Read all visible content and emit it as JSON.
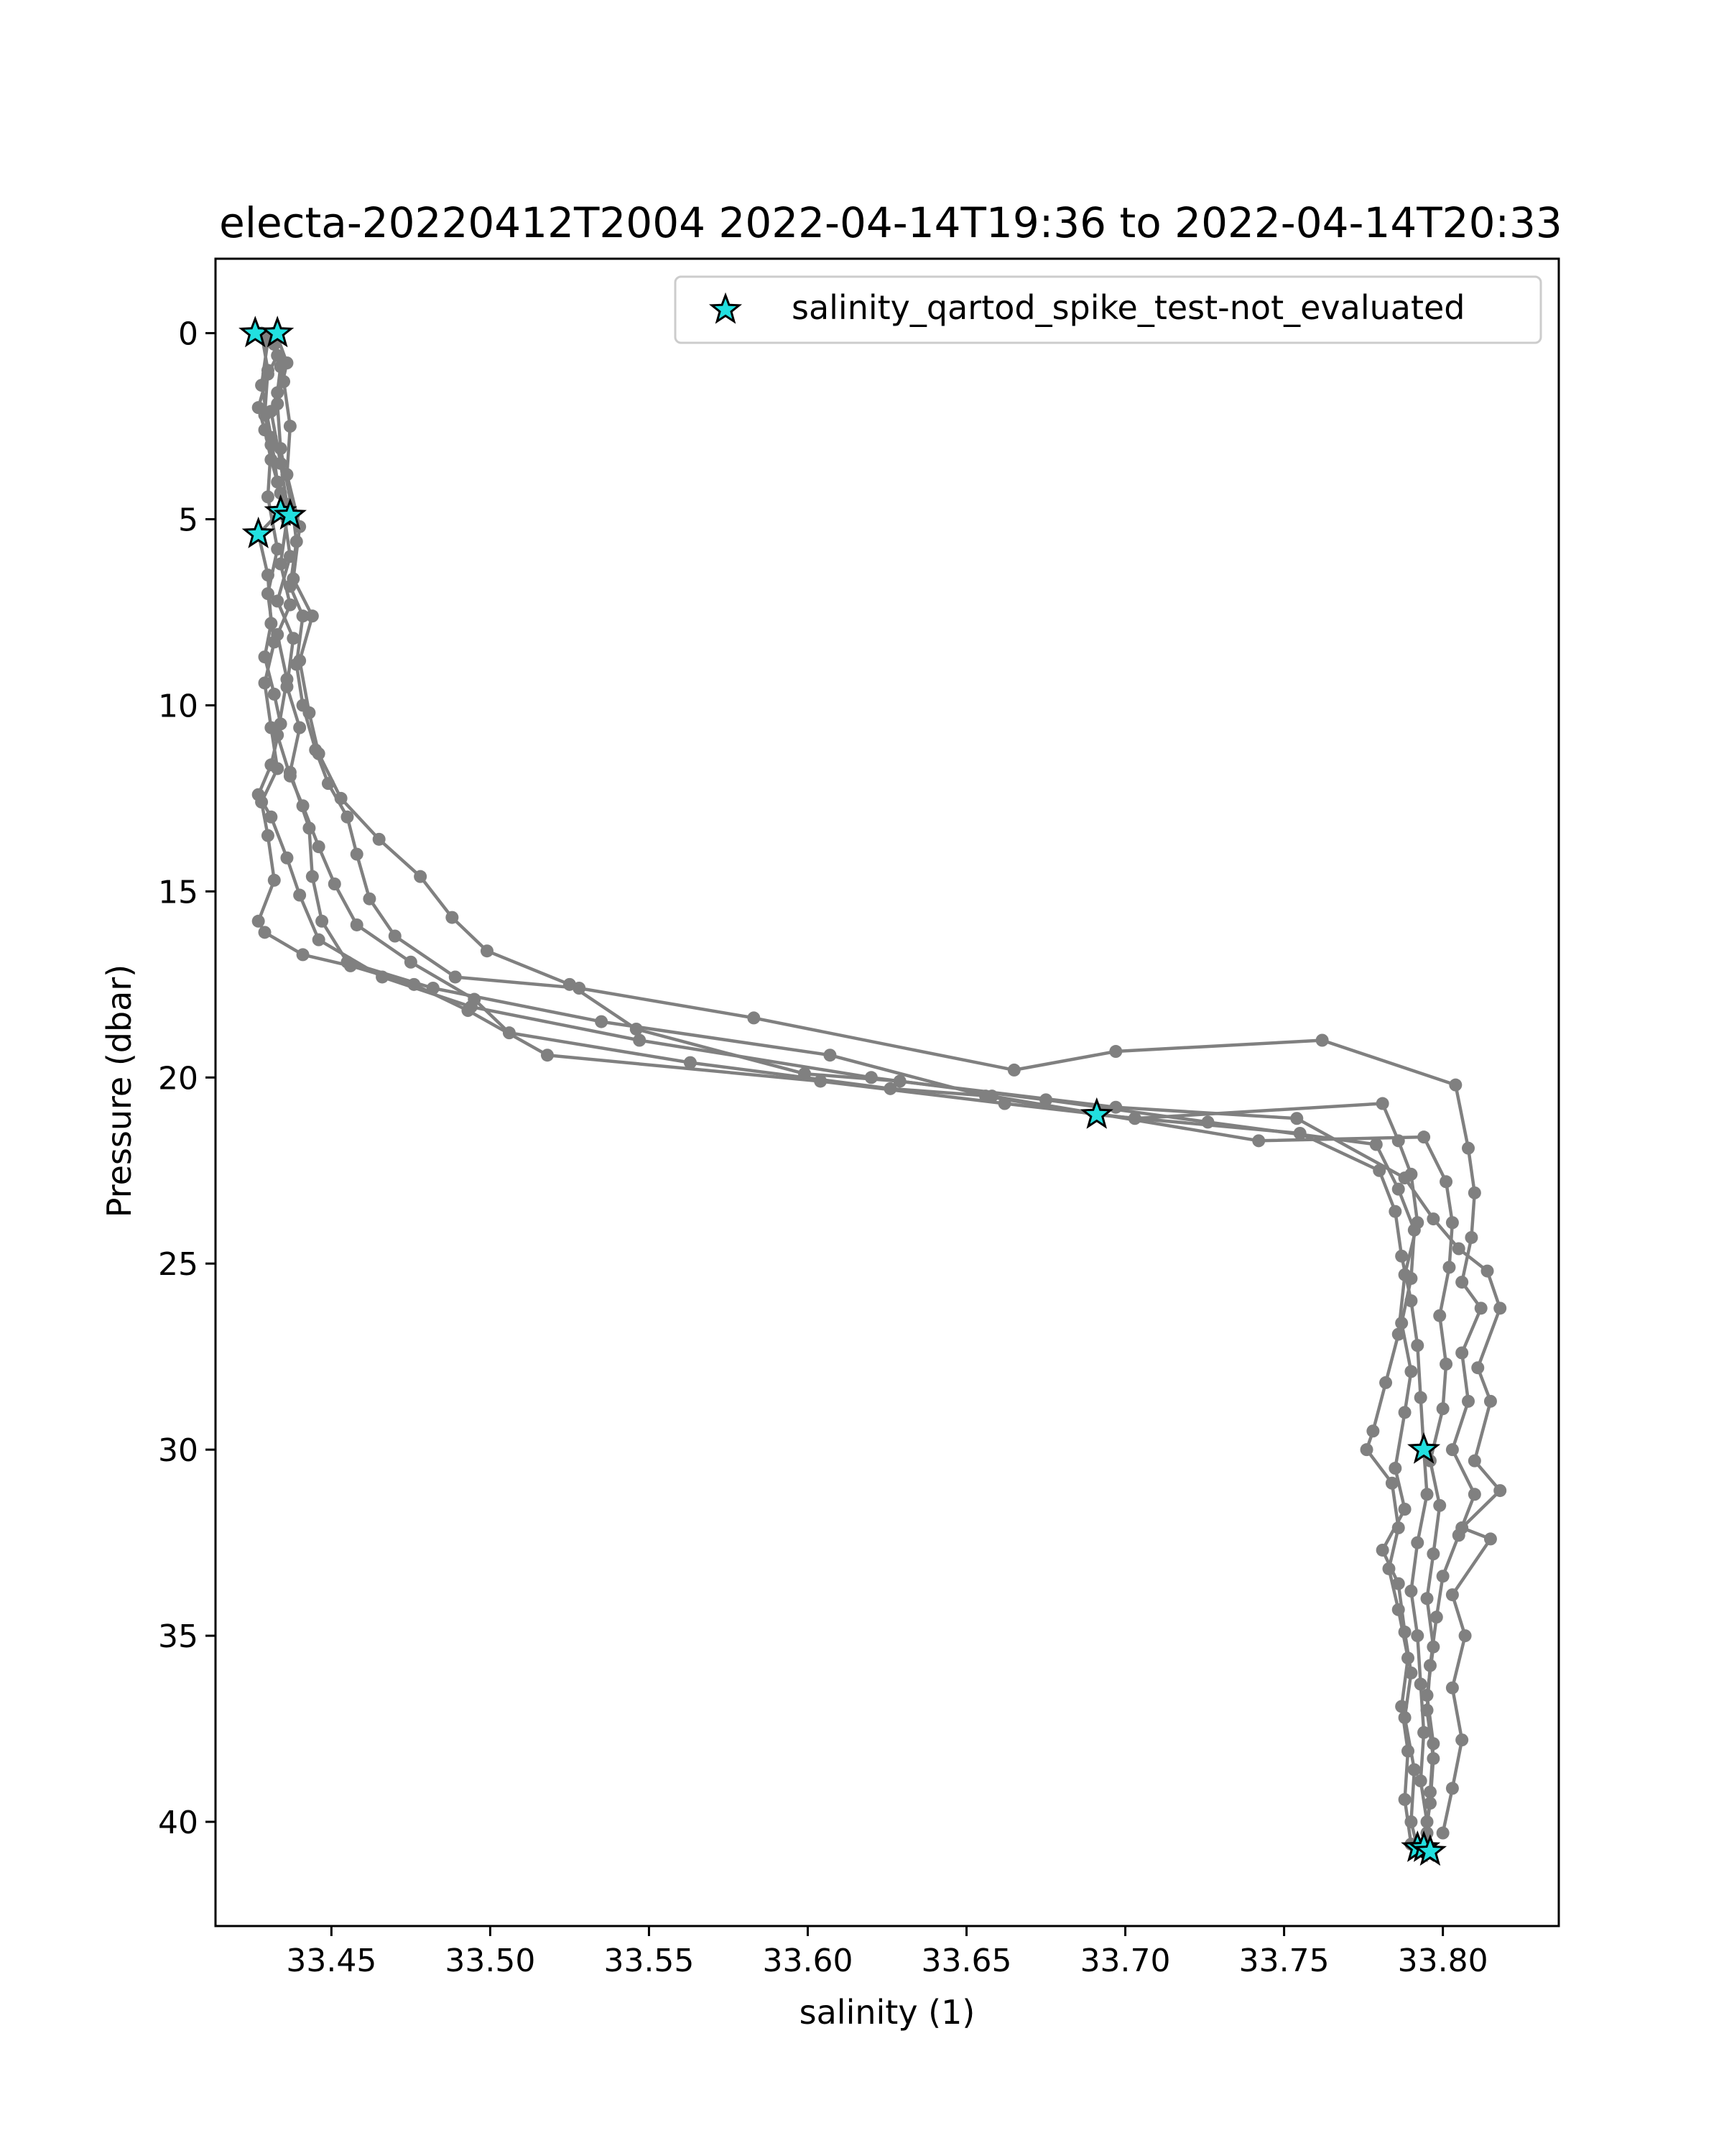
{
  "chart_data": {
    "type": "scatter",
    "title": "electa-20220412T2004 2022-04-14T19:36 to 2022-04-14T20:33",
    "xlabel": "salinity (1)",
    "ylabel": "Pressure (dbar)",
    "xlim": [
      33.4135,
      33.8365
    ],
    "ylim": [
      42.8,
      -2.0
    ],
    "y_inverted": true,
    "grid": false,
    "legend_position": "top-right",
    "x_ticks": [
      "33.45",
      "33.50",
      "33.55",
      "33.60",
      "33.65",
      "33.70",
      "33.75",
      "33.80"
    ],
    "y_ticks": [
      "0",
      "5",
      "10",
      "15",
      "20",
      "25",
      "30",
      "35",
      "40"
    ],
    "colors": {
      "profile_line": "#808080",
      "flag_marker_fill": "#22e0e0",
      "flag_marker_edge": "#000000"
    },
    "series": [
      {
        "role": "profile",
        "points": [
          [
            33.432,
            0.0
          ],
          [
            33.433,
            0.6
          ],
          [
            33.43,
            1.1
          ],
          [
            33.427,
            2.0
          ],
          [
            33.429,
            2.6
          ],
          [
            33.431,
            3.4
          ],
          [
            33.434,
            4.3
          ],
          [
            33.435,
            4.8
          ],
          [
            33.437,
            6.0
          ],
          [
            33.433,
            7.2
          ],
          [
            33.438,
            8.2
          ],
          [
            33.436,
            9.5
          ],
          [
            33.44,
            10.6
          ],
          [
            33.437,
            11.8
          ],
          [
            33.443,
            13.3
          ],
          [
            33.444,
            14.6
          ],
          [
            33.447,
            15.8
          ],
          [
            33.455,
            16.9
          ],
          [
            33.482,
            17.6
          ],
          [
            33.535,
            18.5
          ],
          [
            33.607,
            19.4
          ],
          [
            33.656,
            20.5
          ],
          [
            33.691,
            21.0
          ],
          [
            33.755,
            21.5
          ],
          [
            33.78,
            22.5
          ],
          [
            33.785,
            23.6
          ],
          [
            33.787,
            24.8
          ],
          [
            33.79,
            26.0
          ],
          [
            33.792,
            27.2
          ],
          [
            33.793,
            28.6
          ],
          [
            33.794,
            30.0
          ],
          [
            33.795,
            31.2
          ],
          [
            33.792,
            32.5
          ],
          [
            33.79,
            33.8
          ],
          [
            33.792,
            35.0
          ],
          [
            33.793,
            36.3
          ],
          [
            33.794,
            37.6
          ],
          [
            33.793,
            38.9
          ],
          [
            33.795,
            40.0
          ],
          [
            33.796,
            40.8
          ]
        ]
      },
      {
        "role": "profile",
        "points": [
          [
            33.426,
            0.0
          ],
          [
            33.432,
            0.3
          ],
          [
            33.434,
            0.9
          ],
          [
            33.433,
            1.6
          ],
          [
            33.431,
            2.1
          ],
          [
            33.434,
            3.5
          ],
          [
            33.436,
            4.6
          ],
          [
            33.427,
            5.4
          ],
          [
            33.43,
            6.5
          ],
          [
            33.431,
            7.8
          ],
          [
            33.429,
            8.7
          ],
          [
            33.432,
            9.7
          ],
          [
            33.434,
            10.5
          ],
          [
            33.431,
            11.6
          ],
          [
            33.427,
            12.4
          ],
          [
            33.431,
            13.0
          ],
          [
            33.436,
            14.1
          ],
          [
            33.44,
            15.1
          ],
          [
            33.446,
            16.3
          ],
          [
            33.466,
            17.3
          ],
          [
            33.494,
            18.1
          ],
          [
            33.547,
            19.0
          ],
          [
            33.62,
            20.0
          ],
          [
            33.675,
            20.6
          ],
          [
            33.726,
            21.2
          ],
          [
            33.779,
            21.8
          ],
          [
            33.786,
            23.0
          ],
          [
            33.791,
            24.1
          ],
          [
            33.79,
            25.4
          ],
          [
            33.787,
            26.6
          ],
          [
            33.79,
            27.9
          ],
          [
            33.788,
            29.0
          ],
          [
            33.785,
            30.5
          ],
          [
            33.788,
            31.6
          ],
          [
            33.781,
            32.7
          ],
          [
            33.786,
            33.6
          ],
          [
            33.788,
            34.9
          ],
          [
            33.79,
            36.0
          ],
          [
            33.788,
            37.2
          ],
          [
            33.791,
            38.6
          ],
          [
            33.79,
            40.0
          ],
          [
            33.792,
            40.7
          ]
        ]
      },
      {
        "role": "profile",
        "points": [
          [
            33.433,
            0.1
          ],
          [
            33.436,
            0.8
          ],
          [
            33.433,
            1.9
          ],
          [
            33.434,
            3.1
          ],
          [
            33.438,
            4.9
          ],
          [
            33.439,
            5.6
          ],
          [
            33.437,
            6.8
          ],
          [
            33.441,
            7.6
          ],
          [
            33.439,
            8.9
          ],
          [
            33.441,
            10.0
          ],
          [
            33.445,
            11.2
          ],
          [
            33.449,
            12.1
          ],
          [
            33.455,
            13.0
          ],
          [
            33.458,
            14.0
          ],
          [
            33.462,
            15.2
          ],
          [
            33.47,
            16.2
          ],
          [
            33.489,
            17.3
          ],
          [
            33.528,
            17.6
          ],
          [
            33.583,
            18.4
          ],
          [
            33.665,
            19.8
          ],
          [
            33.697,
            19.3
          ],
          [
            33.762,
            19.0
          ],
          [
            33.804,
            20.2
          ],
          [
            33.808,
            21.9
          ],
          [
            33.81,
            23.1
          ],
          [
            33.809,
            24.3
          ],
          [
            33.806,
            25.5
          ],
          [
            33.812,
            26.2
          ],
          [
            33.806,
            27.4
          ],
          [
            33.808,
            28.7
          ],
          [
            33.803,
            30.0
          ],
          [
            33.81,
            31.2
          ],
          [
            33.805,
            32.3
          ],
          [
            33.8,
            33.4
          ],
          [
            33.798,
            34.5
          ],
          [
            33.796,
            35.8
          ],
          [
            33.795,
            37.0
          ],
          [
            33.797,
            38.3
          ],
          [
            33.796,
            39.5
          ],
          [
            33.794,
            40.6
          ]
        ]
      },
      {
        "role": "profile",
        "points": [
          [
            33.43,
            0.2
          ],
          [
            33.428,
            1.4
          ],
          [
            33.431,
            2.8
          ],
          [
            33.433,
            4.0
          ],
          [
            33.436,
            5.0
          ],
          [
            33.434,
            6.2
          ],
          [
            33.437,
            7.3
          ],
          [
            33.433,
            8.1
          ],
          [
            33.436,
            9.3
          ],
          [
            33.433,
            10.8
          ],
          [
            33.437,
            11.9
          ],
          [
            33.441,
            12.7
          ],
          [
            33.446,
            13.8
          ],
          [
            33.451,
            14.8
          ],
          [
            33.458,
            15.9
          ],
          [
            33.475,
            16.9
          ],
          [
            33.495,
            17.9
          ],
          [
            33.506,
            18.8
          ],
          [
            33.563,
            19.6
          ],
          [
            33.626,
            20.3
          ],
          [
            33.658,
            20.5
          ],
          [
            33.742,
            21.7
          ],
          [
            33.794,
            21.6
          ],
          [
            33.801,
            22.8
          ],
          [
            33.803,
            23.9
          ],
          [
            33.802,
            25.1
          ],
          [
            33.799,
            26.4
          ],
          [
            33.801,
            27.7
          ],
          [
            33.8,
            28.9
          ],
          [
            33.796,
            30.3
          ],
          [
            33.799,
            31.5
          ],
          [
            33.797,
            32.8
          ],
          [
            33.795,
            34.0
          ],
          [
            33.797,
            35.3
          ],
          [
            33.795,
            36.6
          ],
          [
            33.797,
            37.9
          ],
          [
            33.796,
            39.2
          ],
          [
            33.795,
            40.3
          ]
        ]
      },
      {
        "role": "profile",
        "points": [
          [
            33.432,
            0.1
          ],
          [
            33.435,
            1.3
          ],
          [
            33.437,
            2.5
          ],
          [
            33.436,
            3.8
          ],
          [
            33.44,
            5.2
          ],
          [
            33.438,
            6.6
          ],
          [
            33.444,
            7.6
          ],
          [
            33.44,
            8.8
          ],
          [
            33.443,
            10.2
          ],
          [
            33.446,
            11.3
          ],
          [
            33.453,
            12.5
          ],
          [
            33.465,
            13.6
          ],
          [
            33.478,
            14.6
          ],
          [
            33.488,
            15.7
          ],
          [
            33.499,
            16.6
          ],
          [
            33.525,
            17.5
          ],
          [
            33.546,
            18.7
          ],
          [
            33.599,
            19.9
          ],
          [
            33.629,
            20.1
          ],
          [
            33.697,
            20.8
          ],
          [
            33.754,
            21.1
          ],
          [
            33.788,
            22.7
          ],
          [
            33.797,
            23.8
          ],
          [
            33.805,
            24.6
          ],
          [
            33.814,
            25.2
          ],
          [
            33.818,
            26.2
          ],
          [
            33.811,
            27.8
          ],
          [
            33.815,
            28.7
          ],
          [
            33.81,
            30.3
          ],
          [
            33.818,
            31.1
          ],
          [
            33.806,
            32.1
          ],
          [
            33.815,
            32.4
          ],
          [
            33.803,
            33.9
          ],
          [
            33.807,
            35.0
          ],
          [
            33.803,
            36.4
          ],
          [
            33.806,
            37.8
          ],
          [
            33.803,
            39.1
          ],
          [
            33.8,
            40.3
          ]
        ]
      },
      {
        "role": "profile",
        "points": [
          [
            33.428,
            0.0
          ],
          [
            33.43,
            1.0
          ],
          [
            33.429,
            2.2
          ],
          [
            33.431,
            3.0
          ],
          [
            33.43,
            4.4
          ],
          [
            33.433,
            5.8
          ],
          [
            33.43,
            7.0
          ],
          [
            33.432,
            8.3
          ],
          [
            33.429,
            9.4
          ],
          [
            33.431,
            10.6
          ],
          [
            33.433,
            11.7
          ],
          [
            33.428,
            12.6
          ],
          [
            33.43,
            13.5
          ],
          [
            33.432,
            14.7
          ],
          [
            33.427,
            15.8
          ],
          [
            33.429,
            16.1
          ],
          [
            33.441,
            16.7
          ],
          [
            33.456,
            17.0
          ],
          [
            33.476,
            17.5
          ],
          [
            33.493,
            18.2
          ],
          [
            33.518,
            19.4
          ],
          [
            33.604,
            20.1
          ],
          [
            33.662,
            20.7
          ],
          [
            33.703,
            21.1
          ],
          [
            33.781,
            20.7
          ],
          [
            33.786,
            21.7
          ],
          [
            33.79,
            22.6
          ],
          [
            33.792,
            23.9
          ],
          [
            33.788,
            25.3
          ],
          [
            33.786,
            26.9
          ],
          [
            33.782,
            28.2
          ],
          [
            33.778,
            29.5
          ],
          [
            33.776,
            30.0
          ],
          [
            33.784,
            30.9
          ],
          [
            33.786,
            32.1
          ],
          [
            33.783,
            33.2
          ],
          [
            33.786,
            34.3
          ],
          [
            33.789,
            35.6
          ],
          [
            33.787,
            36.9
          ],
          [
            33.789,
            38.1
          ],
          [
            33.788,
            39.4
          ],
          [
            33.79,
            40.6
          ]
        ]
      }
    ],
    "flagged_points": {
      "label": "salinity_qartod_spike_test-not_evaluated",
      "marker": "star",
      "points": [
        [
          33.426,
          0.0
        ],
        [
          33.433,
          0.0
        ],
        [
          33.434,
          4.8
        ],
        [
          33.437,
          4.9
        ],
        [
          33.427,
          5.4
        ],
        [
          33.691,
          21.0
        ],
        [
          33.794,
          30.0
        ],
        [
          33.792,
          40.7
        ],
        [
          33.794,
          40.7
        ],
        [
          33.796,
          40.8
        ]
      ]
    }
  }
}
